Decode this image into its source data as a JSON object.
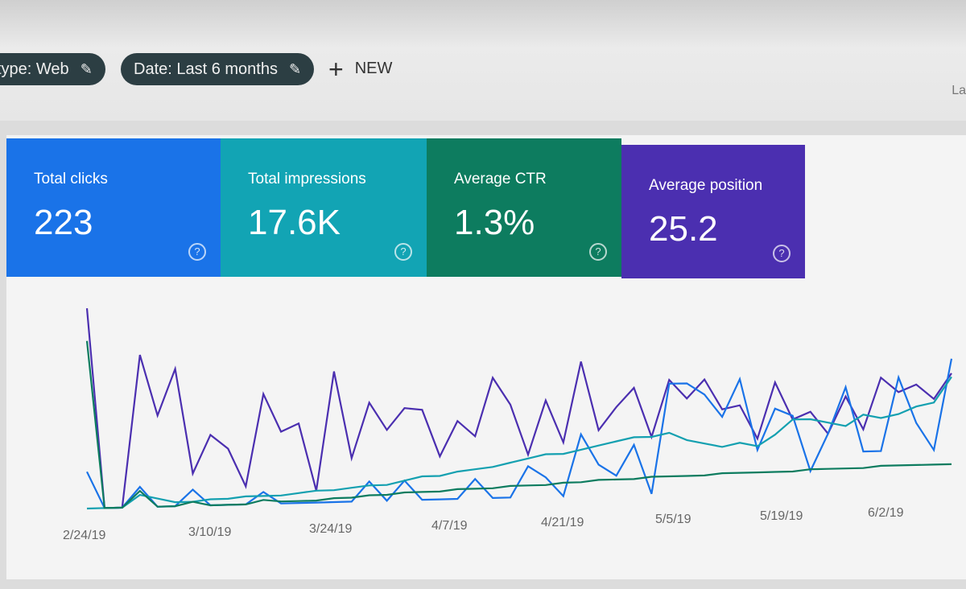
{
  "filters": [
    {
      "label": "type: Web",
      "icon": "pencil-icon"
    },
    {
      "label": "Date: Last 6 months",
      "icon": "pencil-icon"
    }
  ],
  "new_button": {
    "label": "NEW",
    "icon": "plus-icon"
  },
  "cut_text": "La",
  "metrics": [
    {
      "label": "Total clicks",
      "value": "223",
      "color": "#1a73e8"
    },
    {
      "label": "Total impressions",
      "value": "17.6K",
      "color": "#12a4b4"
    },
    {
      "label": "Average CTR",
      "value": "1.3%",
      "color": "#0d7c5f"
    },
    {
      "label": "Average position",
      "value": "25.2",
      "color": "#4b2fb0"
    }
  ],
  "chart_data": {
    "type": "line",
    "x_ticks": [
      "2/24/19",
      "3/10/19",
      "3/24/19",
      "4/7/19",
      "4/21/19",
      "5/5/19",
      "5/19/19",
      "6/2/19"
    ],
    "grid": false,
    "series": [
      {
        "color": "#4b2fb0",
        "values": [
          98,
          0,
          0,
          75,
          45,
          68,
          16,
          35,
          28,
          9,
          55,
          36,
          40,
          6,
          66,
          22,
          50,
          36,
          47,
          46,
          22,
          40,
          32,
          62,
          48,
          22,
          50,
          28,
          70,
          34,
          46,
          56,
          30,
          60,
          50,
          60,
          44,
          46,
          28,
          58,
          38,
          42,
          30,
          50,
          32,
          60,
          52,
          56,
          48,
          62
        ]
      },
      {
        "color": "#1a73e8",
        "values": [
          18,
          0,
          0,
          10,
          0,
          0,
          8,
          0,
          0,
          0,
          6,
          0,
          0,
          0,
          0,
          0,
          10,
          0,
          10,
          0,
          0,
          0,
          10,
          0,
          0,
          16,
          10,
          0,
          32,
          16,
          10,
          26,
          0,
          58,
          58,
          52,
          40,
          60,
          22,
          44,
          40,
          10,
          30,
          55,
          20,
          20,
          60,
          35,
          20,
          70
        ]
      },
      {
        "color": "#14a0b0",
        "values": [
          0,
          0,
          0,
          6,
          4,
          2,
          2,
          3,
          3,
          4,
          4,
          4,
          5,
          6,
          6,
          7,
          8,
          8,
          10,
          12,
          12,
          14,
          15,
          16,
          18,
          20,
          22,
          22,
          24,
          26,
          28,
          30,
          30,
          32,
          28,
          26,
          24,
          26,
          24,
          30,
          38,
          38,
          36,
          34,
          40,
          38,
          40,
          44,
          46,
          60
        ]
      },
      {
        "color": "#0d7c5f",
        "values": [
          82,
          0,
          0,
          8,
          0,
          0,
          2,
          0,
          0,
          0,
          2,
          1,
          1,
          1,
          2,
          2,
          3,
          3,
          4,
          4,
          4,
          5,
          5,
          5,
          6,
          6,
          6,
          7,
          7,
          8,
          8,
          8,
          9,
          9,
          9,
          9,
          10,
          10,
          10,
          10,
          10,
          11,
          11,
          11,
          11,
          12,
          12,
          12,
          12,
          12
        ]
      }
    ]
  }
}
